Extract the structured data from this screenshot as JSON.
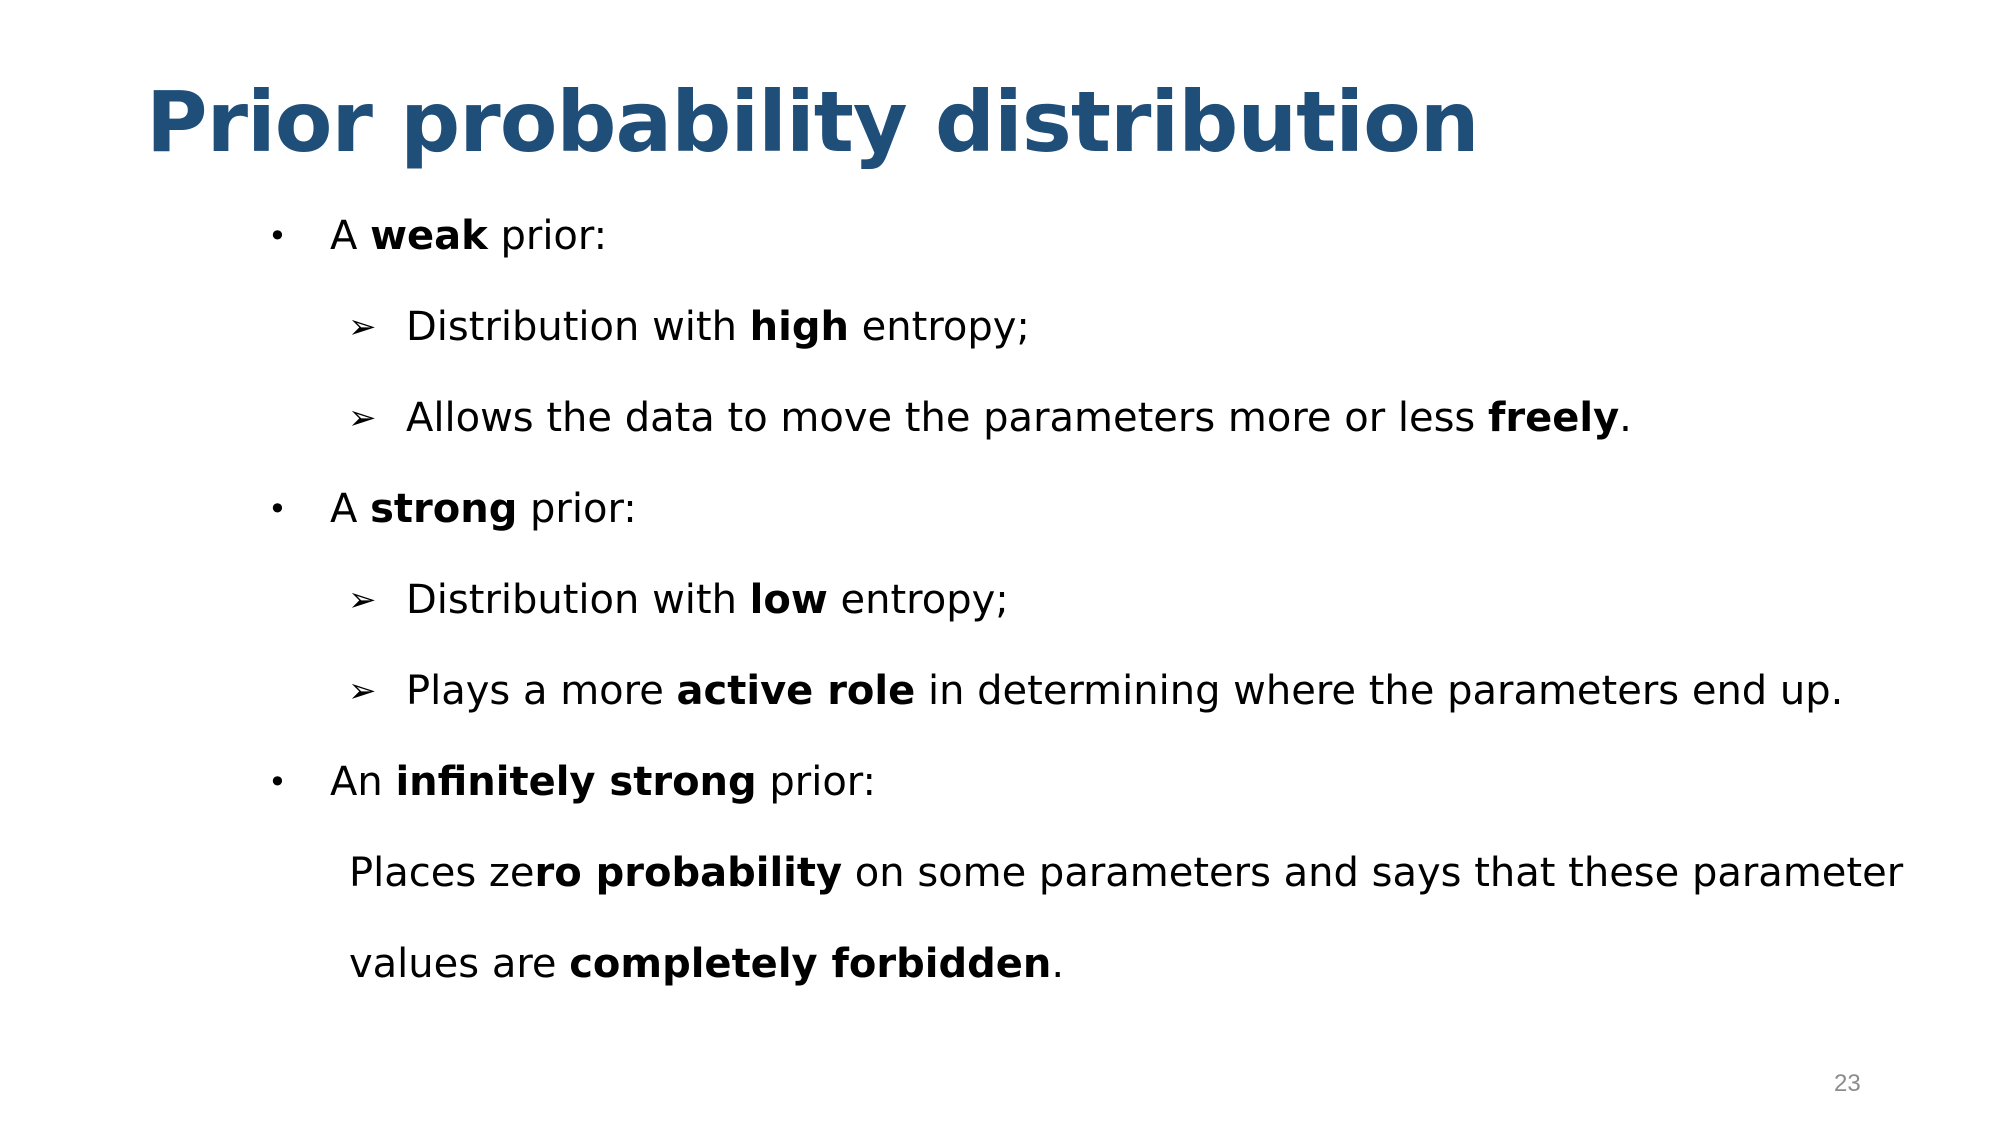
{
  "slide": {
    "title": "Prior probability distribution",
    "page_number": "23",
    "colors": {
      "title": "#1f4e79",
      "text": "#000000",
      "page_number": "#8c8c8c"
    },
    "icons": {
      "level1": "bullet-dot",
      "level2": "arrowhead-bullet"
    },
    "markers": {
      "bullet": "•",
      "arrow": "➢"
    },
    "items": [
      {
        "prefix": "A ",
        "bold": "weak",
        "suffix": " prior:",
        "subitems": [
          {
            "prefix": "Distribution with ",
            "bold": "high",
            "suffix": " entropy;"
          },
          {
            "prefix": "Allows the data to move the parameters more or less ",
            "bold": "freely",
            "suffix": "."
          }
        ]
      },
      {
        "prefix": "A ",
        "bold": "strong",
        "suffix": " prior:",
        "subitems": [
          {
            "prefix": "Distribution with ",
            "bold": "low",
            "suffix": " entropy;"
          },
          {
            "prefix": "Plays a more ",
            "bold": "active role",
            "suffix": " in determining where the parameters end up."
          }
        ]
      },
      {
        "prefix": "An ",
        "bold": "infinitely strong",
        "suffix": " prior:",
        "paragraph": [
          {
            "prefix": "Places ze",
            "bold": "ro probability",
            "suffix": " on some parameters and says that these parameter"
          },
          {
            "prefix": "values are ",
            "bold": "completely forbidden",
            "suffix": "."
          }
        ]
      }
    ]
  }
}
